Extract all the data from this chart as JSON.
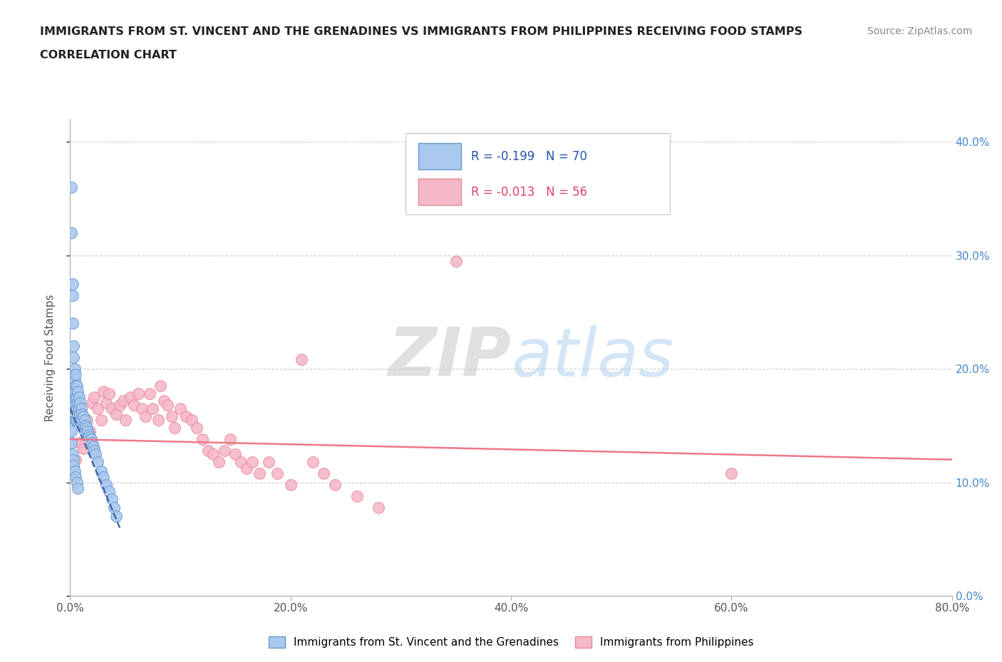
{
  "title_line1": "IMMIGRANTS FROM ST. VINCENT AND THE GRENADINES VS IMMIGRANTS FROM PHILIPPINES RECEIVING FOOD STAMPS",
  "title_line2": "CORRELATION CHART",
  "source": "Source: ZipAtlas.com",
  "ylabel": "Receiving Food Stamps",
  "xmin": 0.0,
  "xmax": 0.8,
  "ymin": 0.0,
  "ymax": 0.42,
  "yticks": [
    0.0,
    0.1,
    0.2,
    0.3,
    0.4
  ],
  "ytick_labels": [
    "0.0%",
    "10.0%",
    "20.0%",
    "30.0%",
    "40.0%"
  ],
  "xticks": [
    0.0,
    0.2,
    0.4,
    0.6,
    0.8
  ],
  "xtick_labels": [
    "0.0%",
    "20.0%",
    "40.0%",
    "60.0%",
    "80.0%"
  ],
  "legend_label1": "Immigrants from St. Vincent and the Grenadines",
  "legend_label2": "Immigrants from Philippines",
  "r1": -0.199,
  "n1": 70,
  "r2": -0.013,
  "n2": 56,
  "color1": "#aac8ee",
  "color2": "#f5b8c8",
  "edge_color1": "#6699cc",
  "edge_color2": "#e88898",
  "line_color1": "#4466aa",
  "line_color2": "#ee7788",
  "scatter1_x": [
    0.001,
    0.001,
    0.002,
    0.002,
    0.002,
    0.002,
    0.002,
    0.003,
    0.003,
    0.003,
    0.003,
    0.003,
    0.003,
    0.004,
    0.004,
    0.004,
    0.004,
    0.004,
    0.005,
    0.005,
    0.005,
    0.005,
    0.005,
    0.006,
    0.006,
    0.006,
    0.006,
    0.007,
    0.007,
    0.007,
    0.008,
    0.008,
    0.008,
    0.009,
    0.009,
    0.01,
    0.01,
    0.011,
    0.011,
    0.012,
    0.012,
    0.013,
    0.013,
    0.014,
    0.015,
    0.016,
    0.017,
    0.018,
    0.019,
    0.02,
    0.021,
    0.022,
    0.023,
    0.025,
    0.028,
    0.03,
    0.033,
    0.035,
    0.038,
    0.04,
    0.042,
    0.001,
    0.001,
    0.002,
    0.003,
    0.003,
    0.004,
    0.005,
    0.006,
    0.007
  ],
  "scatter1_y": [
    0.36,
    0.32,
    0.275,
    0.265,
    0.24,
    0.195,
    0.175,
    0.22,
    0.21,
    0.195,
    0.185,
    0.175,
    0.165,
    0.2,
    0.19,
    0.18,
    0.168,
    0.155,
    0.195,
    0.185,
    0.175,
    0.165,
    0.155,
    0.185,
    0.175,
    0.165,
    0.155,
    0.18,
    0.17,
    0.16,
    0.175,
    0.165,
    0.155,
    0.17,
    0.16,
    0.165,
    0.155,
    0.16,
    0.15,
    0.158,
    0.148,
    0.155,
    0.145,
    0.15,
    0.148,
    0.145,
    0.142,
    0.14,
    0.138,
    0.135,
    0.132,
    0.128,
    0.125,
    0.118,
    0.11,
    0.105,
    0.098,
    0.092,
    0.085,
    0.078,
    0.07,
    0.145,
    0.135,
    0.125,
    0.12,
    0.115,
    0.11,
    0.105,
    0.1,
    0.095
  ],
  "scatter2_x": [
    0.005,
    0.008,
    0.012,
    0.015,
    0.018,
    0.02,
    0.022,
    0.025,
    0.028,
    0.03,
    0.033,
    0.035,
    0.038,
    0.042,
    0.045,
    0.048,
    0.05,
    0.055,
    0.058,
    0.062,
    0.065,
    0.068,
    0.072,
    0.075,
    0.08,
    0.082,
    0.085,
    0.088,
    0.092,
    0.095,
    0.1,
    0.105,
    0.11,
    0.115,
    0.12,
    0.125,
    0.13,
    0.135,
    0.14,
    0.145,
    0.15,
    0.155,
    0.16,
    0.165,
    0.172,
    0.18,
    0.188,
    0.2,
    0.21,
    0.22,
    0.23,
    0.24,
    0.26,
    0.28,
    0.35,
    0.6
  ],
  "scatter2_y": [
    0.12,
    0.135,
    0.13,
    0.155,
    0.145,
    0.17,
    0.175,
    0.165,
    0.155,
    0.18,
    0.17,
    0.178,
    0.165,
    0.16,
    0.168,
    0.172,
    0.155,
    0.175,
    0.168,
    0.178,
    0.165,
    0.158,
    0.178,
    0.165,
    0.155,
    0.185,
    0.172,
    0.168,
    0.158,
    0.148,
    0.165,
    0.158,
    0.155,
    0.148,
    0.138,
    0.128,
    0.125,
    0.118,
    0.128,
    0.138,
    0.125,
    0.118,
    0.112,
    0.118,
    0.108,
    0.118,
    0.108,
    0.098,
    0.208,
    0.118,
    0.108,
    0.098,
    0.088,
    0.078,
    0.295,
    0.108
  ],
  "reg_line1_x": [
    0.0,
    0.045
  ],
  "reg_line1_y": [
    0.165,
    0.06
  ],
  "reg_line2_x": [
    0.0,
    0.8
  ],
  "reg_line2_y": [
    0.138,
    0.12
  ]
}
